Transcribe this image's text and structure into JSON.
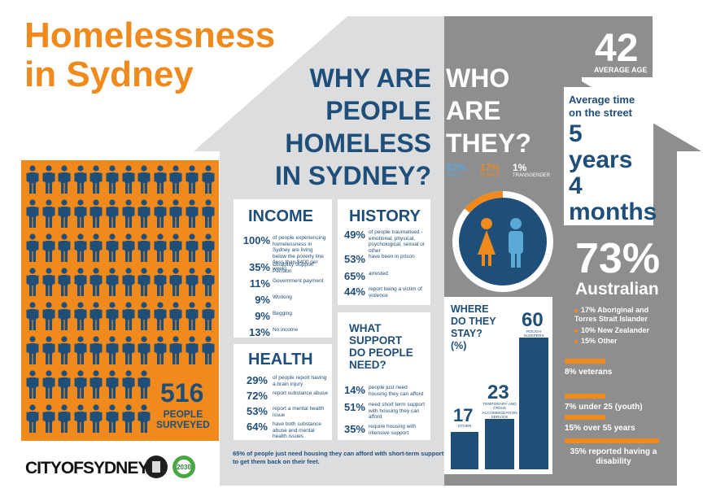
{
  "title": {
    "line1": "Homelessness",
    "line2": "in Sydney"
  },
  "surveyed": {
    "number": "516",
    "label_line1": "PEOPLE",
    "label_line2": "SURVEYED"
  },
  "why": {
    "line1": "WHY ARE",
    "line2": "PEOPLE",
    "line3": "HOMELESS",
    "line4": "IN SYDNEY?"
  },
  "who": {
    "line1": "WHO",
    "line2": "ARE",
    "line3": "THEY?"
  },
  "gender": {
    "male_pct": "82%",
    "male_label": "MALE",
    "female_pct": "17%",
    "female_label": "FEMALE",
    "trans_pct": "1%",
    "trans_label": "TRANSGENDER"
  },
  "age": {
    "number": "42",
    "label": "AVERAGE AGE"
  },
  "time_on_street": {
    "title": "Average time on the street",
    "years_num": "5",
    "years_word": "years",
    "months_num": "4",
    "months_word": "months"
  },
  "income": {
    "heading": "INCOME",
    "rows": [
      {
        "pct": "100%",
        "text": "of people experiencing homelessness in Sydney are living below the poverty line (less than $400 per week)"
      },
      {
        "pct": "35%",
        "text": "Disability Support Pension"
      },
      {
        "pct": "11%",
        "text": "Government payment"
      },
      {
        "pct": "9%",
        "text": "Working"
      },
      {
        "pct": "9%",
        "text": "Begging"
      },
      {
        "pct": "13%",
        "text": "No income"
      }
    ]
  },
  "history": {
    "heading": "HISTORY",
    "rows": [
      {
        "pct": "49%",
        "text": "of people traumatised - emotional, physical, psychological, sexual or other"
      },
      {
        "pct": "53%",
        "text": "have been in prison"
      },
      {
        "pct": "65%",
        "text": "arrested"
      },
      {
        "pct": "44%",
        "text": "report being a victim of violence"
      }
    ]
  },
  "health": {
    "heading": "HEALTH",
    "rows": [
      {
        "pct": "29%",
        "text": "of people report having a brain injury"
      },
      {
        "pct": "72%",
        "text": "report substance abuse"
      },
      {
        "pct": "53%",
        "text": "report a mental health issue"
      },
      {
        "pct": "64%",
        "text": "have both substance abuse and mental health issues"
      }
    ]
  },
  "support": {
    "heading_line1": "WHAT",
    "heading_line2": "SUPPORT",
    "heading_line3": "DO PEOPLE",
    "heading_line4": "NEED?",
    "rows": [
      {
        "pct": "14%",
        "text": "people just need housing they can afford"
      },
      {
        "pct": "51%",
        "text": "need short term support with housing they can afford"
      },
      {
        "pct": "35%",
        "text": "require housing with intensive support"
      }
    ]
  },
  "footer_note": "65% of people just need housing they can afford with short-term support to get them back on their feet.",
  "australian": {
    "pct": "73%",
    "word": "Australian",
    "items": [
      "17% Aboriginal and Torres Strait Islander",
      "10% New Zealander",
      "15% Other"
    ]
  },
  "groups": [
    {
      "label": "8% veterans",
      "value": 8
    },
    {
      "label": "7% under 25 (youth)",
      "value": 7
    },
    {
      "label": "15% over 55 years",
      "value": 15
    },
    {
      "label": "35% reported having a disability",
      "value": 35
    }
  ],
  "stay": {
    "title_line1": "WHERE",
    "title_line2": "DO THEY",
    "title_line3": "STAY?",
    "title_line4": "(%)",
    "bars": [
      {
        "value": 17,
        "label": "OTHER"
      },
      {
        "value": 23,
        "label": "TEMPORARY AND CRISIS ACCOMMODATION SERVICE"
      },
      {
        "value": 60,
        "label": "ROUGH SLEEPERS"
      }
    ]
  },
  "logo": {
    "text": "CITYOFSYDNEY",
    "badge": "2030"
  },
  "colors": {
    "orange": "#f08a1c",
    "navy": "#1f4e79",
    "grey": "#8a8c8e",
    "lightgrey": "#d9dadb",
    "blue": "#5aa9d6"
  }
}
